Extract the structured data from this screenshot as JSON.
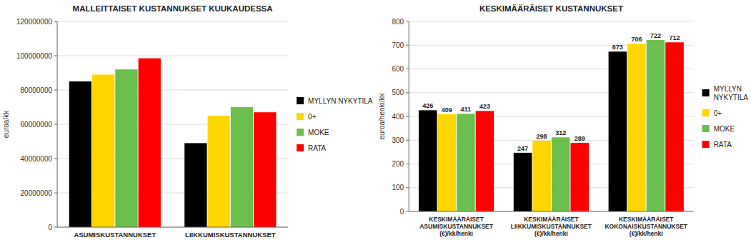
{
  "chart_data": [
    {
      "type": "bar",
      "title": "MALLEITTAISET KUSTANNUKSET KUUKAUDESSA",
      "ylabel": "euroa/kk",
      "categories": [
        "ASUMISKUSTANNUKSET",
        "LIIKKUMISKUSTANNUKSET"
      ],
      "series": [
        {
          "name": "MYLLYN NYKYTILA",
          "color": "#000000",
          "values": [
            85000000,
            49000000
          ]
        },
        {
          "name": "0+",
          "color": "#FFD700",
          "values": [
            89000000,
            65000000
          ]
        },
        {
          "name": "MOKE",
          "color": "#6BBF4E",
          "values": [
            92000000,
            70000000
          ]
        },
        {
          "name": "RATA",
          "color": "#FF0000",
          "values": [
            98500000,
            67000000
          ]
        }
      ],
      "ylim": [
        0,
        120000000
      ],
      "yticks": [
        0,
        20000000,
        40000000,
        60000000,
        80000000,
        100000000,
        120000000
      ],
      "grid": true,
      "legend": "right"
    },
    {
      "type": "bar",
      "title": "KESKIMÄÄRÄISET KUSTANNUKSET",
      "ylabel": "euroa/henki/kk",
      "categories": [
        "KESKIMÄÄRÄISET\nASUMISKUSTANNUKSET\n(€)/kk/henki",
        "KESKIMÄÄRÄISET\nLIIKKUMISKUSTANNUKSET\n(€)/kk/henki",
        "KESKIMÄÄRÄISET\nKOKONAISKUSTANNUKSET\n(€)/kk/henki"
      ],
      "series": [
        {
          "name": "MYLLYN\nNYKYTILA",
          "color": "#000000",
          "values": [
            426,
            247,
            673
          ]
        },
        {
          "name": "0+",
          "color": "#FFD700",
          "values": [
            409,
            298,
            706
          ]
        },
        {
          "name": "MOKE",
          "color": "#6BBF4E",
          "values": [
            411,
            312,
            722
          ]
        },
        {
          "name": "RATA",
          "color": "#FF0000",
          "values": [
            423,
            289,
            712
          ]
        }
      ],
      "ylim": [
        0,
        800
      ],
      "yticks": [
        0,
        100,
        200,
        300,
        400,
        500,
        600,
        700,
        800
      ],
      "grid": true,
      "legend": "right",
      "data_labels": true
    }
  ]
}
